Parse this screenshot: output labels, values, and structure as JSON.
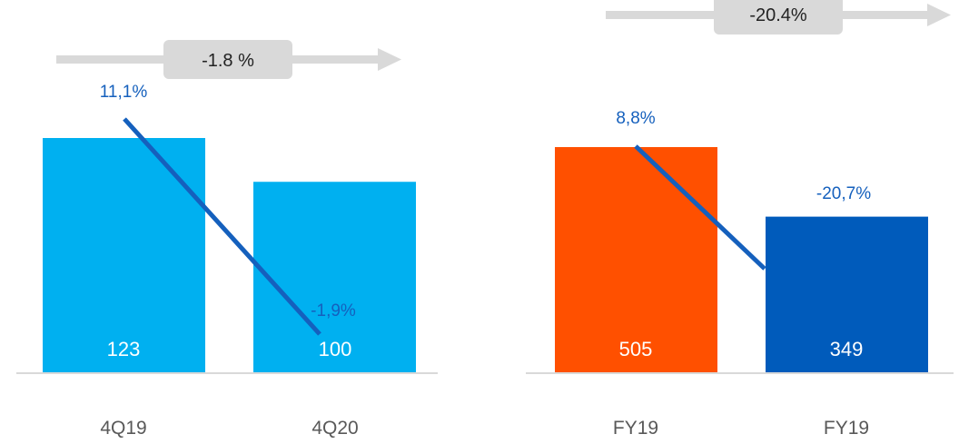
{
  "chart_data": [
    {
      "type": "bar",
      "categories": [
        "4Q19",
        "4Q20"
      ],
      "values": [
        123,
        100
      ],
      "bar_colors": [
        "#00b0f0",
        "#00b0f0"
      ],
      "line_series": {
        "labels": [
          "11,1%",
          "-1,9%"
        ],
        "values": [
          11.1,
          -1.9
        ]
      },
      "change_label": "-1.8 %",
      "ylim": [
        0,
        140
      ]
    },
    {
      "type": "bar",
      "categories": [
        "FY19",
        "FY19"
      ],
      "values": [
        505,
        349
      ],
      "bar_colors": [
        "#ff5000",
        "#005bbb"
      ],
      "line_series": {
        "labels": [
          "8,8%",
          "-20,7%"
        ],
        "values": [
          8.8,
          -20.7
        ]
      },
      "change_label": "-20.4%",
      "ylim": [
        0,
        600
      ]
    }
  ],
  "colors": {
    "line": "#1560bd",
    "arrow": "#d9d9d9",
    "baseline": "#d9d9d9"
  }
}
